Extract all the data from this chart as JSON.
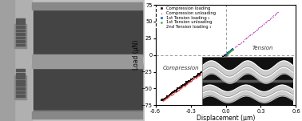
{
  "xlabel": "Displacement (μm)",
  "ylabel": "Load (μN)",
  "xlim": [
    -0.6,
    0.6
  ],
  "ylim": [
    -75,
    75
  ],
  "xticks": [
    -0.6,
    -0.3,
    0.0,
    0.3,
    0.6
  ],
  "yticks": [
    -75,
    -50,
    -25,
    0,
    25,
    50,
    75
  ],
  "legend_entries": [
    "Compression loading",
    "Compression unloading",
    "1st Tension loading ₁",
    "1st Tension unloading",
    "2nd Tension loading ₁"
  ],
  "legend_markers": [
    "s",
    "^",
    "s",
    "o",
    "*"
  ],
  "legend_colors": [
    "#111111",
    "#cc2222",
    "#2255cc",
    "#22aa22",
    "#bb44bb"
  ],
  "annotation_compression": "Compression",
  "annotation_tension": "Tension",
  "dashed_color": "#888888",
  "left_bg": "#cccccc",
  "left_dark": "#444444",
  "left_mid": "#888888",
  "left_light": "#bbbbbb"
}
